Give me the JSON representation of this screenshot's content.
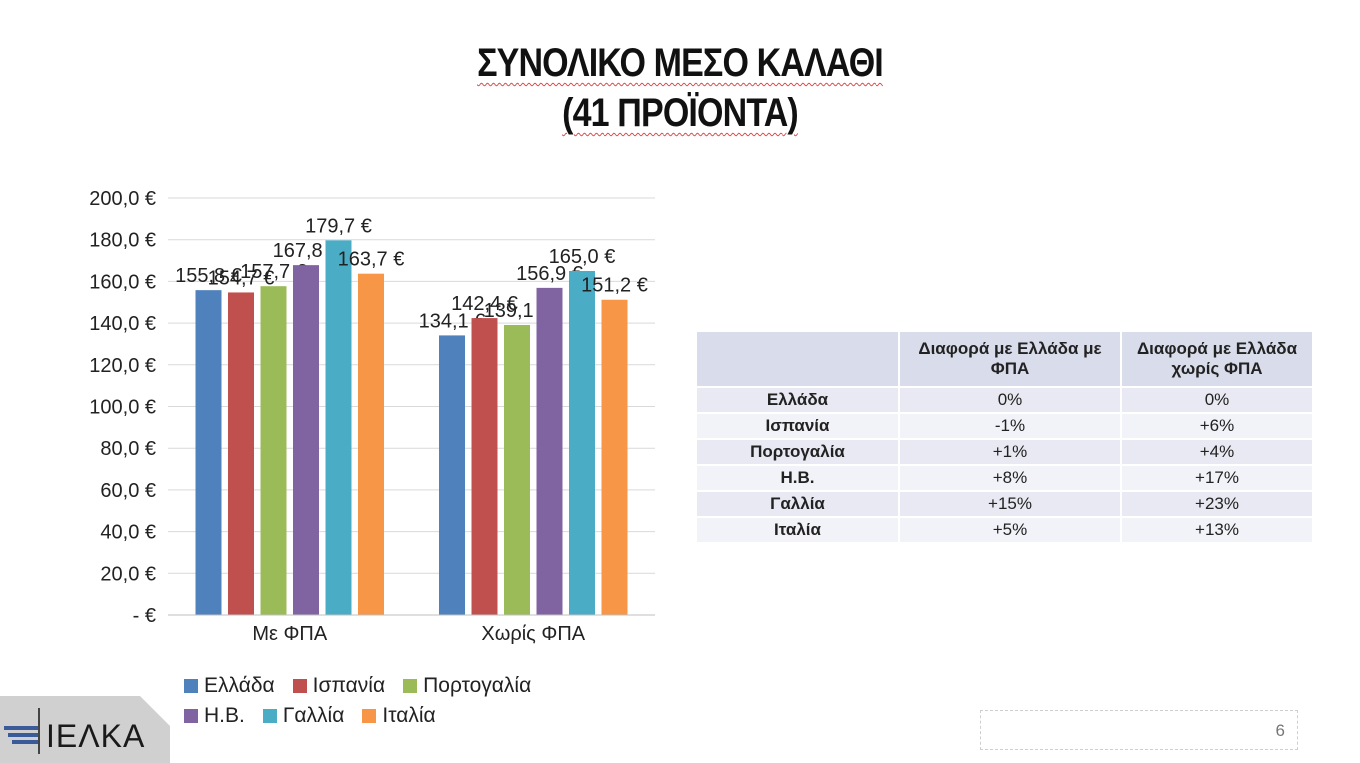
{
  "slide": {
    "title_line1": "ΣΥΝΟΛΙΚΟ ΜΕΣΟ ΚΑΛΑΘΙ",
    "title_line2": "(41 ΠΡΟΪΟΝΤΑ)",
    "page_number": "6",
    "logo_text": "ΙΕΛΚΑ"
  },
  "chart_data": {
    "type": "bar",
    "categories": [
      "Με ΦΠΑ",
      "Χωρίς ΦΠΑ"
    ],
    "series": [
      {
        "name": "Ελλάδα",
        "color": "#4f81bd",
        "values": [
          155.8,
          134.1
        ],
        "labels": [
          "155,8 €",
          "134,1 €"
        ]
      },
      {
        "name": "Ισπανία",
        "color": "#c0504d",
        "values": [
          154.7,
          142.4
        ],
        "labels": [
          "154,7 €",
          "142,4 €"
        ]
      },
      {
        "name": "Πορτογαλία",
        "color": "#9bbb59",
        "values": [
          157.7,
          139.1
        ],
        "labels": [
          "157,7 €",
          "139,1 €"
        ]
      },
      {
        "name": "Η.Β.",
        "color": "#8064a2",
        "values": [
          167.8,
          156.9
        ],
        "labels": [
          "167,8 €",
          "156,9 €"
        ]
      },
      {
        "name": "Γαλλία",
        "color": "#4bacc6",
        "values": [
          179.7,
          165.0
        ],
        "labels": [
          "179,7 €",
          "165,0 €"
        ]
      },
      {
        "name": "Ιταλία",
        "color": "#f79646",
        "values": [
          163.7,
          151.2
        ],
        "labels": [
          "163,7 €",
          "151,2 €"
        ]
      }
    ],
    "ylim": [
      0,
      200
    ],
    "yticks": [
      0,
      20,
      40,
      60,
      80,
      100,
      120,
      140,
      160,
      180,
      200
    ],
    "ytick_labels": [
      "-  €",
      "20,0 €",
      "40,0 €",
      "60,0 €",
      "80,0 €",
      "100,0 €",
      "120,0 €",
      "140,0 €",
      "160,0 €",
      "180,0 €",
      "200,0 €"
    ],
    "grid": true,
    "legend_position": "bottom"
  },
  "table": {
    "headers": [
      "",
      "Διαφορά με Ελλάδα με ΦΠΑ",
      "Διαφορά με Ελλάδα χωρίς ΦΠΑ"
    ],
    "rows": [
      {
        "country": "Ελλάδα",
        "with_vat": "0%",
        "without_vat": "0%"
      },
      {
        "country": "Ισπανία",
        "with_vat": "-1%",
        "without_vat": "+6%"
      },
      {
        "country": "Πορτογαλία",
        "with_vat": "+1%",
        "without_vat": "+4%"
      },
      {
        "country": "Η.Β.",
        "with_vat": "+8%",
        "without_vat": "+17%"
      },
      {
        "country": "Γαλλία",
        "with_vat": "+15%",
        "without_vat": "+23%"
      },
      {
        "country": "Ιταλία",
        "with_vat": "+5%",
        "without_vat": "+13%"
      }
    ]
  }
}
